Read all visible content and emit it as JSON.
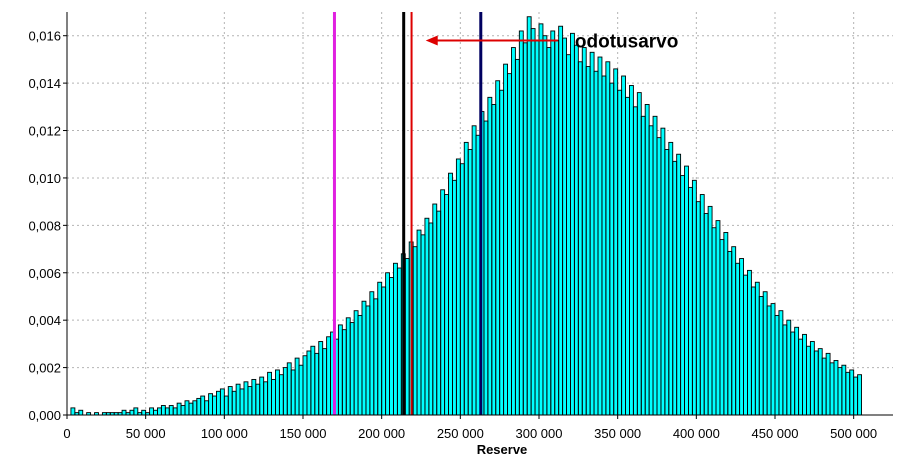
{
  "chart_data": {
    "type": "bar",
    "title": "",
    "xlabel": "Reserve",
    "ylabel": "",
    "xlim": [
      0,
      525000
    ],
    "ylim": [
      0,
      0.017
    ],
    "x_ticks": [
      0,
      50000,
      100000,
      150000,
      200000,
      250000,
      300000,
      350000,
      400000,
      450000,
      500000
    ],
    "x_tick_labels": [
      "0",
      "50 000",
      "100 000",
      "150 000",
      "200 000",
      "250 000",
      "300 000",
      "350 000",
      "400 000",
      "450 000",
      "500 000"
    ],
    "y_ticks": [
      0,
      0.002,
      0.004,
      0.006,
      0.008,
      0.01,
      0.012,
      0.014,
      0.016
    ],
    "y_tick_labels": [
      "0,000",
      "0,002",
      "0,004",
      "0,006",
      "0,008",
      "0,010",
      "0,012",
      "0,014",
      "0,016"
    ],
    "grid": true,
    "bar_color": "#00ffff",
    "bar_edge_color": "#000000",
    "bin_width": 2500,
    "bins_start": 2500,
    "bins_end": 505000,
    "density": [
      0.0003,
      0.0001,
      0.0002,
      0.0,
      0.0001,
      0.0,
      0.0001,
      0.0,
      0.0001,
      0.0001,
      0.0001,
      0.0001,
      0.0001,
      0.0002,
      0.0001,
      0.0002,
      0.0003,
      0.0001,
      0.0002,
      0.0001,
      0.0003,
      0.0002,
      0.0003,
      0.0004,
      0.0003,
      0.0004,
      0.0003,
      0.0005,
      0.0004,
      0.0006,
      0.0005,
      0.0006,
      0.0007,
      0.0008,
      0.0006,
      0.0009,
      0.0008,
      0.001,
      0.0011,
      0.0008,
      0.0012,
      0.001,
      0.0013,
      0.0011,
      0.0014,
      0.0012,
      0.0015,
      0.0013,
      0.0016,
      0.0014,
      0.0018,
      0.0015,
      0.0019,
      0.0017,
      0.002,
      0.0022,
      0.0019,
      0.0024,
      0.0021,
      0.0025,
      0.0027,
      0.0029,
      0.0026,
      0.0031,
      0.0028,
      0.0033,
      0.0035,
      0.0032,
      0.0038,
      0.0036,
      0.0041,
      0.0039,
      0.0044,
      0.0042,
      0.0048,
      0.0046,
      0.0052,
      0.0049,
      0.0056,
      0.0054,
      0.006,
      0.0058,
      0.0064,
      0.0062,
      0.0068,
      0.0066,
      0.0073,
      0.0071,
      0.0078,
      0.0076,
      0.0083,
      0.0081,
      0.0089,
      0.0086,
      0.0095,
      0.0093,
      0.0102,
      0.0099,
      0.0108,
      0.0106,
      0.0115,
      0.0112,
      0.0122,
      0.0118,
      0.0128,
      0.0124,
      0.0134,
      0.0131,
      0.0141,
      0.0137,
      0.0148,
      0.0144,
      0.0155,
      0.015,
      0.0162,
      0.0157,
      0.0168,
      0.0163,
      0.0158,
      0.0165,
      0.016,
      0.0155,
      0.0162,
      0.0158,
      0.0164,
      0.0159,
      0.0152,
      0.0161,
      0.0156,
      0.0149,
      0.0155,
      0.0147,
      0.0153,
      0.0145,
      0.0151,
      0.0143,
      0.0149,
      0.014,
      0.0146,
      0.0137,
      0.0143,
      0.0134,
      0.0139,
      0.013,
      0.0136,
      0.0126,
      0.0131,
      0.0122,
      0.0126,
      0.0117,
      0.0121,
      0.0112,
      0.0115,
      0.0107,
      0.011,
      0.0101,
      0.0105,
      0.0096,
      0.0099,
      0.009,
      0.0093,
      0.0085,
      0.0088,
      0.0079,
      0.0082,
      0.0074,
      0.0077,
      0.0069,
      0.0071,
      0.0064,
      0.0066,
      0.0059,
      0.0061,
      0.0054,
      0.0056,
      0.005,
      0.0052,
      0.0046,
      0.0047,
      0.0042,
      0.0044,
      0.0038,
      0.004,
      0.0035,
      0.0037,
      0.0032,
      0.0034,
      0.0029,
      0.0031,
      0.0027,
      0.0028,
      0.0024,
      0.0026,
      0.0022,
      0.0023,
      0.002,
      0.0021,
      0.0018,
      0.0019,
      0.0016,
      0.0017,
      0.0014,
      0.0015,
      0.0013,
      0.0014,
      0.0011,
      0.0012,
      0.001,
      0.0011,
      0.0009,
      0.001,
      0.0008,
      0.0009,
      0.0007,
      0.0008,
      0.0006,
      0.0007,
      0.0005,
      0.0006,
      0.0005,
      0.0005,
      0.0004,
      0.0005,
      0.0003,
      0.0004,
      0.0003,
      0.0004,
      0.0002,
      0.0003,
      0.0002,
      0.0003,
      0.0002,
      0.0002,
      0.0001,
      0.0002,
      0.0001,
      0.0002,
      0.0001,
      0.0001,
      0.0001,
      0.0001,
      0.0001,
      0.0001,
      0.0,
      0.0001,
      0.0,
      0.0001,
      0.0,
      0.0001,
      0.0,
      0.0,
      0.0,
      0.0001,
      0.0,
      0.0,
      0.0,
      0.0,
      0.0,
      0.0,
      0.0,
      0.0,
      0.0,
      0.0,
      0.0,
      0.0,
      0.0,
      0.0,
      0.0,
      0.0,
      0.0,
      0.0,
      0.0,
      0.0,
      0.0,
      0.0,
      0.0,
      0.0,
      0.0,
      0.0,
      0.0,
      0.0,
      0.0,
      0.0,
      0.0,
      0.0,
      0.0,
      0.0,
      0.0,
      0.0,
      0.0,
      0.0,
      0.0,
      0.0,
      0.0,
      0.0,
      0.0,
      0.0,
      0.0,
      0.0,
      0.0,
      0.0,
      0.0,
      0.0,
      0.0,
      0.0,
      0.0,
      0.0,
      0.0,
      0.0,
      0.0,
      0.0,
      0.0,
      0.0,
      0.0,
      0.0,
      0.0,
      0.0,
      0.0,
      0.0,
      0.0,
      0.0,
      0.0,
      0.0,
      0.0,
      0.0,
      0.0,
      0.0,
      0.0,
      0.0,
      0.0,
      0.0,
      0.0,
      0.0,
      0.0,
      0.0,
      0.0,
      0.0,
      0.0,
      0.0,
      0.0,
      0.0,
      0.0,
      0.0,
      0.0,
      0.0,
      0.0,
      0.0,
      0.0,
      0.0,
      0.0,
      0.0,
      0.0,
      0.0,
      0.0,
      0.0,
      0.0,
      0.0,
      0.0,
      0.0,
      0.0,
      0.0,
      0.0,
      0.0,
      0.0,
      0.0,
      0.0,
      0.0,
      0.0,
      0.0,
      0.0,
      0.0,
      0.0,
      0.0,
      0.0,
      0.0,
      0.0,
      0.0,
      0.0,
      0.0,
      0.0,
      0.0,
      0.0,
      0.0,
      0.0,
      0.0,
      0.0,
      0.0,
      0.0,
      0.0,
      0.0,
      0.0,
      0.0,
      0.0,
      0.0,
      0.0,
      0.0,
      0.0,
      0.0,
      0.0,
      0.0
    ],
    "vertical_lines": [
      {
        "x": 170000,
        "color": "#e020e0"
      },
      {
        "x": 214000,
        "color": "#000000"
      },
      {
        "x": 219000,
        "color": "#dd0000"
      },
      {
        "x": 263000,
        "color": "#000060"
      }
    ],
    "annotations": [
      {
        "text": "odotusarvo",
        "arrow_color": "#dd0000",
        "arrow_from_x": 312000,
        "arrow_to_x": 228000,
        "y": 0.0158
      }
    ]
  }
}
